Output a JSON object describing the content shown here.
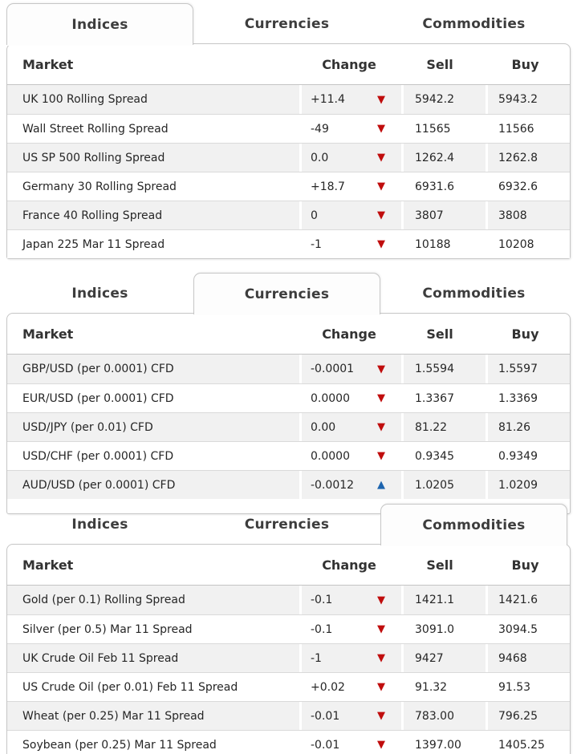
{
  "colors": {
    "down_arrow_red": "#c00d0d",
    "up_arrow_blue": "#1d64ae",
    "shaded_row": "#f1f1f1",
    "border": "#c6c6c6"
  },
  "icons": {
    "down_arrow": "▼",
    "up_arrow": "▲"
  },
  "tabs": [
    "Indices",
    "Currencies",
    "Commodities"
  ],
  "columns": [
    "Market",
    "Change",
    "Sell",
    "Buy"
  ],
  "sections": [
    {
      "active_tab": "Indices",
      "rows": [
        {
          "market": "UK 100 Rolling Spread",
          "change": "+11.4",
          "direction": "down",
          "sell": "5942.2",
          "buy": "5943.2"
        },
        {
          "market": "Wall Street Rolling Spread",
          "change": "-49",
          "direction": "down",
          "sell": "11565",
          "buy": "11566"
        },
        {
          "market": "US SP 500 Rolling Spread",
          "change": "0.0",
          "direction": "down",
          "sell": "1262.4",
          "buy": "1262.8"
        },
        {
          "market": "Germany 30 Rolling Spread",
          "change": "+18.7",
          "direction": "down",
          "sell": "6931.6",
          "buy": "6932.6"
        },
        {
          "market": "France 40 Rolling Spread",
          "change": "0",
          "direction": "down",
          "sell": "3807",
          "buy": "3808"
        },
        {
          "market": "Japan 225 Mar 11 Spread",
          "change": "-1",
          "direction": "down",
          "sell": "10188",
          "buy": "10208"
        }
      ]
    },
    {
      "active_tab": "Currencies",
      "rows": [
        {
          "market": "GBP/USD (per 0.0001) CFD",
          "change": "-0.0001",
          "direction": "down",
          "sell": "1.5594",
          "buy": "1.5597"
        },
        {
          "market": "EUR/USD (per 0.0001) CFD",
          "change": "0.0000",
          "direction": "down",
          "sell": "1.3367",
          "buy": "1.3369"
        },
        {
          "market": "USD/JPY (per 0.01) CFD",
          "change": "0.00",
          "direction": "down",
          "sell": "81.22",
          "buy": "81.26"
        },
        {
          "market": "USD/CHF (per 0.0001) CFD",
          "change": "0.0000",
          "direction": "down",
          "sell": "0.9345",
          "buy": "0.9349"
        },
        {
          "market": "AUD/USD (per 0.0001) CFD",
          "change": "-0.0012",
          "direction": "up",
          "sell": "1.0205",
          "buy": "1.0209"
        }
      ]
    },
    {
      "active_tab": "Commodities",
      "rows": [
        {
          "market": "Gold (per 0.1) Rolling Spread",
          "change": "-0.1",
          "direction": "down",
          "sell": "1421.1",
          "buy": "1421.6"
        },
        {
          "market": "Silver (per 0.5) Mar 11 Spread",
          "change": "-0.1",
          "direction": "down",
          "sell": "3091.0",
          "buy": "3094.5"
        },
        {
          "market": "UK Crude Oil Feb 11 Spread",
          "change": "-1",
          "direction": "down",
          "sell": "9427",
          "buy": "9468"
        },
        {
          "market": "US Crude Oil (per 0.01) Feb 11 Spread",
          "change": "+0.02",
          "direction": "down",
          "sell": "91.32",
          "buy": "91.53"
        },
        {
          "market": "Wheat (per 0.25) Mar 11 Spread",
          "change": "-0.01",
          "direction": "down",
          "sell": "783.00",
          "buy": "796.25"
        },
        {
          "market": "Soybean (per 0.25) Mar 11 Spread",
          "change": "-0.01",
          "direction": "down",
          "sell": "1397.00",
          "buy": "1405.25"
        }
      ]
    }
  ]
}
